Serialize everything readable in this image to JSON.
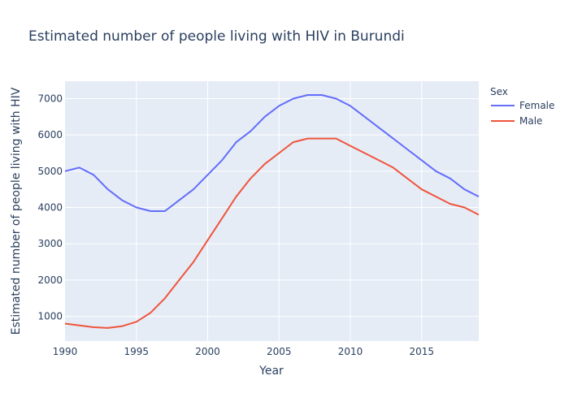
{
  "chart_data": {
    "type": "line",
    "title": "Estimated number of people living with HIV in Burundi",
    "xlabel": "Year",
    "ylabel": "Estimated number of people living with HIV",
    "xlim": [
      1990,
      2019
    ],
    "ylim": [
      320,
      7480
    ],
    "x_ticks": [
      "1990",
      "1995",
      "2000",
      "2005",
      "2010",
      "2015"
    ],
    "y_ticks": [
      "1000",
      "2000",
      "3000",
      "4000",
      "5000",
      "6000",
      "7000"
    ],
    "grid": true,
    "legend": {
      "title": "Sex",
      "position": "top-right"
    },
    "x": [
      1990,
      1991,
      1992,
      1993,
      1994,
      1995,
      1996,
      1997,
      1998,
      1999,
      2000,
      2001,
      2002,
      2003,
      2004,
      2005,
      2006,
      2007,
      2008,
      2009,
      2010,
      2011,
      2012,
      2013,
      2014,
      2015,
      2016,
      2017,
      2018,
      2019
    ],
    "series": [
      {
        "name": "Female",
        "color": "#636efa",
        "values": [
          5000,
          5100,
          4900,
          4500,
          4200,
          4000,
          3900,
          3900,
          4200,
          4500,
          4900,
          5300,
          5800,
          6100,
          6500,
          6800,
          7000,
          7100,
          7100,
          7000,
          6800,
          6500,
          6200,
          5900,
          5600,
          5300,
          5000,
          4800,
          4500,
          4300
        ]
      },
      {
        "name": "Male",
        "color": "#ef553b",
        "values": [
          800,
          750,
          700,
          680,
          730,
          850,
          1100,
          1500,
          2000,
          2500,
          3100,
          3700,
          4300,
          4800,
          5200,
          5500,
          5800,
          5900,
          5900,
          5900,
          5700,
          5500,
          5300,
          5100,
          4800,
          4500,
          4300,
          4100,
          4000,
          3800
        ]
      }
    ]
  }
}
